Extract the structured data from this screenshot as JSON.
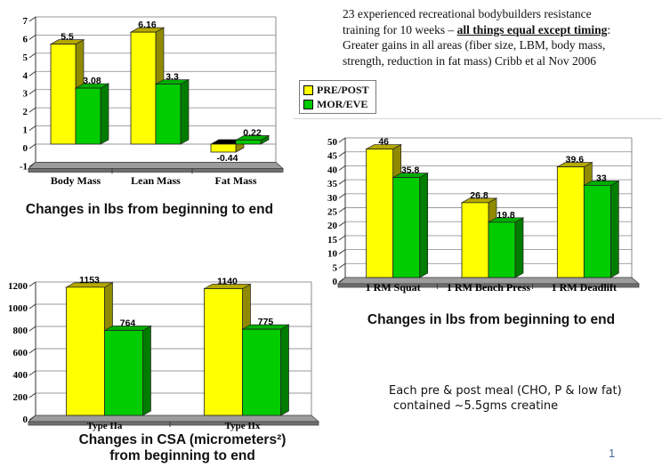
{
  "slide": {
    "page_number": "1",
    "page_number_color": "#4a6b9e",
    "background": "#ffffff"
  },
  "paragraph": {
    "line1": "23 experienced recreational bodybuilders resistance",
    "line2_prefix": "training for 10 weeks – ",
    "line2_emphasis": "all things equal except timing",
    "line2_suffix": ":",
    "line3": "Greater gains in all areas (fiber size, LBM, body mass,",
    "line4": "strength, reduction in fat mass) Cribb et al Nov 2006"
  },
  "legend": {
    "items": [
      {
        "label": "PRE/POST",
        "color": "#FFFF00"
      },
      {
        "label": "MOR/EVE",
        "color": "#00CC00"
      }
    ]
  },
  "note": {
    "line1": "Each pre & post meal (CHO, P & low fat)",
    "line2": "contained ~5.5gms creatine"
  },
  "colors": {
    "floor_top": "#9c9c9c",
    "floor_front": "#6f6f6f",
    "negative_cap": "#000000",
    "gridline": "#9a9a9a",
    "axis": "#333333"
  },
  "chart_data": [
    {
      "id": "mass-change",
      "type": "bar",
      "title": "Changes in lbs from beginning to end",
      "categories": [
        "Body Mass",
        "Lean Mass",
        "Fat Mass"
      ],
      "series": [
        {
          "name": "PRE/POST",
          "color": "#FFFF00",
          "top_color": "#B5A900",
          "side_color": "#8F8A00",
          "values": [
            5.5,
            6.16,
            -0.44
          ]
        },
        {
          "name": "MOR/EVE",
          "color": "#00CC00",
          "top_color": "#00AE00",
          "side_color": "#007C00",
          "values": [
            3.08,
            3.3,
            0.22
          ]
        }
      ],
      "xlabel": "",
      "ylabel": "",
      "ylim": [
        -1,
        7
      ],
      "ytick_step": 1,
      "grid": true,
      "legend_position": "external-top-right"
    },
    {
      "id": "strength-change",
      "type": "bar",
      "title": "Changes in lbs from beginning to end",
      "categories": [
        "1 RM Squat",
        "1 RM Bench Press",
        "1 RM Deadlift"
      ],
      "series": [
        {
          "name": "PRE/POST",
          "color": "#FFFF00",
          "top_color": "#B5A900",
          "side_color": "#8F8A00",
          "values": [
            46,
            26.8,
            39.6
          ]
        },
        {
          "name": "MOR/EVE",
          "color": "#00CC00",
          "top_color": "#00AE00",
          "side_color": "#007C00",
          "values": [
            35.8,
            19.8,
            33
          ]
        }
      ],
      "xlabel": "",
      "ylabel": "",
      "ylim": [
        0,
        50
      ],
      "ytick_step": 5,
      "grid": true,
      "legend_position": "shared-external"
    },
    {
      "id": "csa-change",
      "type": "bar",
      "title": "Changes in CSA (micrometers²) from beginning to end",
      "title_line1": "Changes in CSA (micrometers²)",
      "title_line2": "from beginning to end",
      "categories": [
        "Type IIa",
        "Type IIx"
      ],
      "series": [
        {
          "name": "PRE/POST",
          "color": "#FFFF00",
          "top_color": "#B5A900",
          "side_color": "#8F8A00",
          "values": [
            1153,
            1140
          ]
        },
        {
          "name": "MOR/EVE",
          "color": "#00CC00",
          "top_color": "#00AE00",
          "side_color": "#007C00",
          "values": [
            764,
            775
          ]
        }
      ],
      "xlabel": "",
      "ylabel": "",
      "ylim": [
        0,
        1200
      ],
      "ytick_step": 200,
      "grid": true,
      "legend_position": "shared-external"
    }
  ]
}
